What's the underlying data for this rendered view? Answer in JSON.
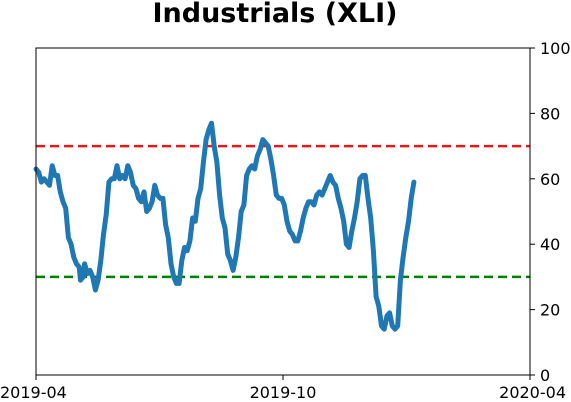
{
  "chart_data": {
    "type": "line",
    "title": "Industrials (XLI)",
    "xlabel": "",
    "ylabel": "",
    "x_ticks": [
      "2019-04",
      "2019-10",
      "2020-04"
    ],
    "x_range": [
      "2019-04-01",
      "2020-04-01"
    ],
    "y_ticks": [
      "0",
      "20",
      "40",
      "60",
      "80",
      "100"
    ],
    "ylim": [
      0,
      100
    ],
    "y_axis_side": "right",
    "grid": false,
    "legend": "none",
    "series": [
      {
        "color": "#1f77b4",
        "points": [
          [
            "2019-04-01",
            63
          ],
          [
            "2019-04-03",
            62
          ],
          [
            "2019-04-05",
            59
          ],
          [
            "2019-04-07",
            60
          ],
          [
            "2019-04-09",
            59
          ],
          [
            "2019-04-11",
            58
          ],
          [
            "2019-04-13",
            64
          ],
          [
            "2019-04-15",
            61
          ],
          [
            "2019-04-17",
            61
          ],
          [
            "2019-04-19",
            56
          ],
          [
            "2019-04-21",
            53
          ],
          [
            "2019-04-23",
            51
          ],
          [
            "2019-04-25",
            42
          ],
          [
            "2019-04-27",
            40
          ],
          [
            "2019-04-29",
            36
          ],
          [
            "2019-05-01",
            34
          ],
          [
            "2019-05-03",
            33
          ],
          [
            "2019-05-04",
            29
          ],
          [
            "2019-05-06",
            30
          ],
          [
            "2019-05-07",
            34
          ],
          [
            "2019-05-09",
            31
          ],
          [
            "2019-05-11",
            32
          ],
          [
            "2019-05-13",
            30
          ],
          [
            "2019-05-15",
            26
          ],
          [
            "2019-05-17",
            29
          ],
          [
            "2019-05-19",
            35
          ],
          [
            "2019-05-21",
            43
          ],
          [
            "2019-05-23",
            49
          ],
          [
            "2019-05-25",
            59
          ],
          [
            "2019-05-27",
            60
          ],
          [
            "2019-05-29",
            60
          ],
          [
            "2019-05-31",
            64
          ],
          [
            "2019-06-02",
            60
          ],
          [
            "2019-06-04",
            61
          ],
          [
            "2019-06-06",
            60
          ],
          [
            "2019-06-08",
            64
          ],
          [
            "2019-06-10",
            62
          ],
          [
            "2019-06-12",
            58
          ],
          [
            "2019-06-14",
            57
          ],
          [
            "2019-06-16",
            54
          ],
          [
            "2019-06-18",
            53
          ],
          [
            "2019-06-20",
            56
          ],
          [
            "2019-06-22",
            50
          ],
          [
            "2019-06-24",
            51
          ],
          [
            "2019-06-26",
            53
          ],
          [
            "2019-06-28",
            58
          ],
          [
            "2019-06-30",
            55
          ],
          [
            "2019-07-02",
            54
          ],
          [
            "2019-07-04",
            54
          ],
          [
            "2019-07-06",
            46
          ],
          [
            "2019-07-08",
            42
          ],
          [
            "2019-07-10",
            34
          ],
          [
            "2019-07-12",
            30
          ],
          [
            "2019-07-14",
            28
          ],
          [
            "2019-07-16",
            28
          ],
          [
            "2019-07-18",
            35
          ],
          [
            "2019-07-20",
            39
          ],
          [
            "2019-07-22",
            38
          ],
          [
            "2019-07-24",
            41
          ],
          [
            "2019-07-26",
            48
          ],
          [
            "2019-07-28",
            47
          ],
          [
            "2019-07-30",
            54
          ],
          [
            "2019-08-01",
            57
          ],
          [
            "2019-08-03",
            65
          ],
          [
            "2019-08-05",
            72
          ],
          [
            "2019-08-07",
            75
          ],
          [
            "2019-08-09",
            77
          ],
          [
            "2019-08-11",
            70
          ],
          [
            "2019-08-13",
            65
          ],
          [
            "2019-08-15",
            55
          ],
          [
            "2019-08-17",
            48
          ],
          [
            "2019-08-19",
            45
          ],
          [
            "2019-08-21",
            37
          ],
          [
            "2019-08-23",
            35
          ],
          [
            "2019-08-25",
            32
          ],
          [
            "2019-08-27",
            36
          ],
          [
            "2019-08-29",
            42
          ],
          [
            "2019-08-31",
            50
          ],
          [
            "2019-09-02",
            52
          ],
          [
            "2019-09-04",
            61
          ],
          [
            "2019-09-06",
            63
          ],
          [
            "2019-09-08",
            64
          ],
          [
            "2019-09-10",
            63
          ],
          [
            "2019-09-12",
            67
          ],
          [
            "2019-09-14",
            69
          ],
          [
            "2019-09-16",
            72
          ],
          [
            "2019-09-18",
            71
          ],
          [
            "2019-09-20",
            70
          ],
          [
            "2019-09-22",
            66
          ],
          [
            "2019-09-24",
            61
          ],
          [
            "2019-09-26",
            55
          ],
          [
            "2019-09-28",
            54
          ],
          [
            "2019-09-30",
            54
          ],
          [
            "2019-10-02",
            52
          ],
          [
            "2019-10-04",
            47
          ],
          [
            "2019-10-06",
            44
          ],
          [
            "2019-10-08",
            43
          ],
          [
            "2019-10-10",
            41
          ],
          [
            "2019-10-12",
            41
          ],
          [
            "2019-10-14",
            44
          ],
          [
            "2019-10-16",
            48
          ],
          [
            "2019-10-18",
            51
          ],
          [
            "2019-10-20",
            53
          ],
          [
            "2019-10-22",
            53
          ],
          [
            "2019-10-24",
            52
          ],
          [
            "2019-10-26",
            55
          ],
          [
            "2019-10-28",
            56
          ],
          [
            "2019-10-30",
            55
          ],
          [
            "2019-11-01",
            57
          ],
          [
            "2019-11-03",
            59
          ],
          [
            "2019-11-05",
            61
          ],
          [
            "2019-11-07",
            59
          ],
          [
            "2019-11-09",
            58
          ],
          [
            "2019-11-11",
            54
          ],
          [
            "2019-11-13",
            51
          ],
          [
            "2019-11-15",
            47
          ],
          [
            "2019-11-17",
            40
          ],
          [
            "2019-11-19",
            39
          ],
          [
            "2019-11-21",
            44
          ],
          [
            "2019-11-23",
            48
          ],
          [
            "2019-11-25",
            53
          ],
          [
            "2019-11-27",
            60
          ],
          [
            "2019-11-29",
            61
          ],
          [
            "2019-12-01",
            61
          ],
          [
            "2019-12-03",
            54
          ],
          [
            "2019-12-05",
            48
          ],
          [
            "2019-12-07",
            38
          ],
          [
            "2019-12-09",
            24
          ],
          [
            "2019-12-11",
            21
          ],
          [
            "2019-12-13",
            15
          ],
          [
            "2019-12-15",
            14
          ],
          [
            "2019-12-17",
            18
          ],
          [
            "2019-12-19",
            19
          ],
          [
            "2019-12-21",
            15
          ],
          [
            "2019-12-23",
            14
          ],
          [
            "2019-12-25",
            15
          ],
          [
            "2019-12-27",
            29
          ],
          [
            "2019-12-29",
            36
          ],
          [
            "2019-12-31",
            42
          ],
          [
            "2020-01-02",
            47
          ],
          [
            "2020-01-04",
            54
          ],
          [
            "2020-01-06",
            59
          ]
        ]
      }
    ],
    "reference_lines": [
      {
        "y": 70,
        "color": "#e31a1c",
        "style": "dashed"
      },
      {
        "y": 30,
        "color": "#008000",
        "style": "dashed"
      }
    ]
  }
}
